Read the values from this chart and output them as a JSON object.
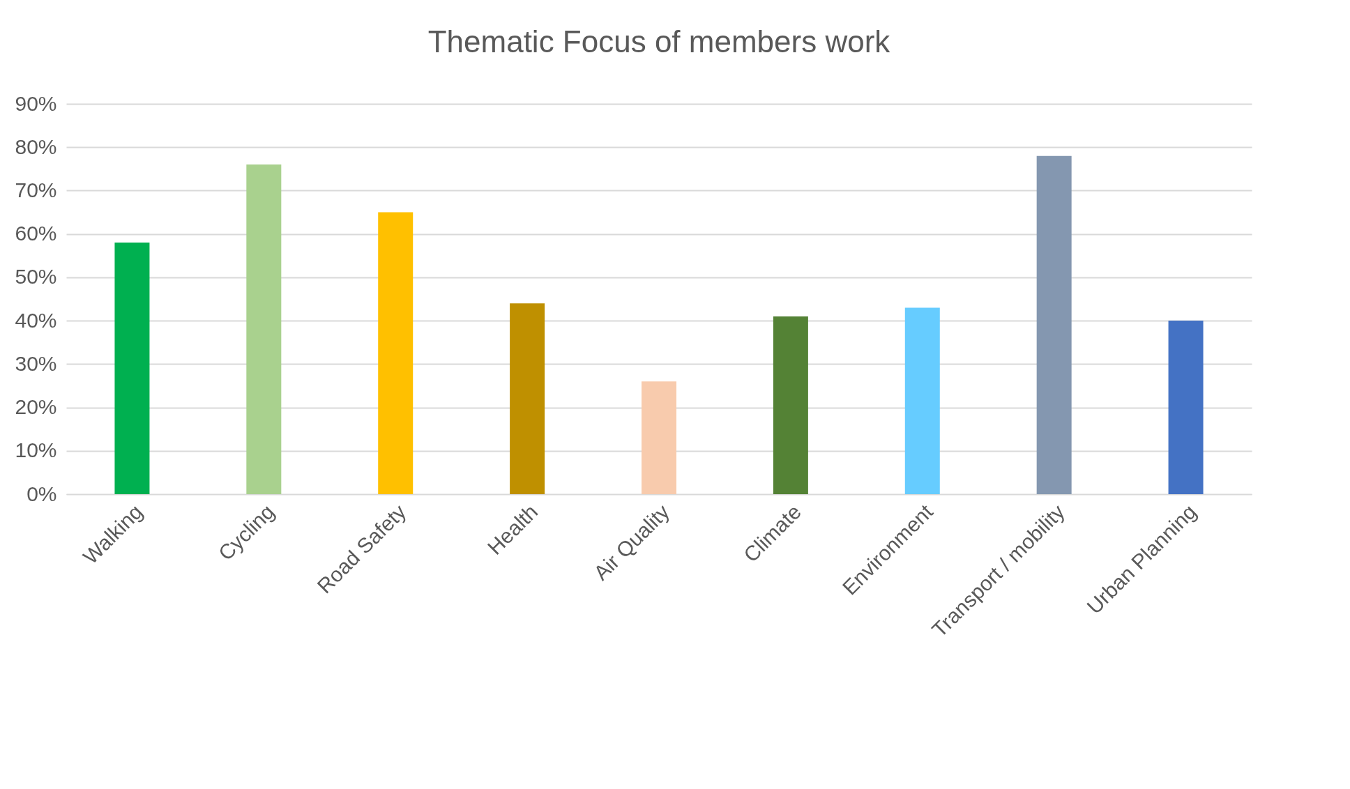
{
  "chart_data": {
    "type": "bar",
    "title": "Thematic Focus of members work",
    "categories": [
      "Walking",
      "Cycling",
      "Road Safety",
      "Health",
      "Air Quality",
      "Climate",
      "Environment",
      "Transport / mobility",
      "Urban Planning"
    ],
    "values": [
      58,
      76,
      65,
      44,
      26,
      41,
      43,
      78,
      40
    ],
    "colors": [
      "#00b050",
      "#a9d18e",
      "#ffc000",
      "#bf9000",
      "#f8cbad",
      "#548235",
      "#66ccff",
      "#8497b0",
      "#4472c4"
    ],
    "ylim": [
      0,
      90
    ],
    "yticks": [
      {
        "value": 0,
        "label": "0%"
      },
      {
        "value": 10,
        "label": "10%"
      },
      {
        "value": 20,
        "label": "20%"
      },
      {
        "value": 30,
        "label": "30%"
      },
      {
        "value": 40,
        "label": "40%"
      },
      {
        "value": 50,
        "label": "50%"
      },
      {
        "value": 60,
        "label": "60%"
      },
      {
        "value": 70,
        "label": "70%"
      },
      {
        "value": 80,
        "label": "80%"
      },
      {
        "value": 90,
        "label": "90%"
      }
    ],
    "grid": "y",
    "legend": false
  }
}
